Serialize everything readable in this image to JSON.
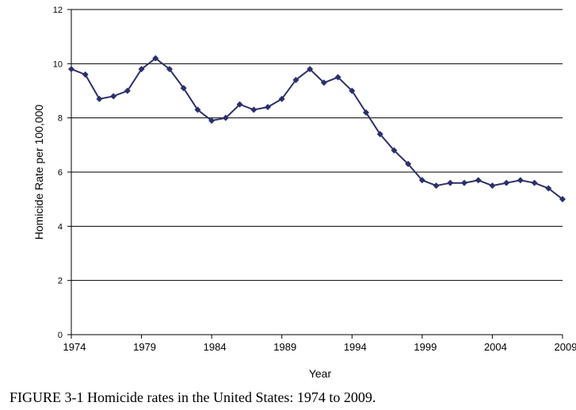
{
  "chart_data": {
    "type": "line",
    "title": "",
    "xlabel": "Year",
    "ylabel": "Homicide Rate per 100,000",
    "xlim": [
      1974,
      2009
    ],
    "ylim": [
      0,
      12
    ],
    "x_ticks": [
      "1974",
      "1979",
      "1984",
      "1989",
      "1994",
      "1999",
      "2004",
      "2009"
    ],
    "y_ticks": [
      "0",
      "2",
      "4",
      "6",
      "8",
      "10",
      "12"
    ],
    "grid": true,
    "legend": "none",
    "colors": {
      "line": "#2b2f6b",
      "grid": "#000000",
      "axis": "#000000"
    },
    "series": [
      {
        "name": "Homicide Rate",
        "x": [
          1974,
          1975,
          1976,
          1977,
          1978,
          1979,
          1980,
          1981,
          1982,
          1983,
          1984,
          1985,
          1986,
          1987,
          1988,
          1989,
          1990,
          1991,
          1992,
          1993,
          1994,
          1995,
          1996,
          1997,
          1998,
          1999,
          2000,
          2001,
          2002,
          2003,
          2004,
          2005,
          2006,
          2007,
          2008,
          2009
        ],
        "values": [
          9.8,
          9.6,
          8.7,
          8.8,
          9.0,
          9.8,
          10.2,
          9.8,
          9.1,
          8.3,
          7.9,
          8.0,
          8.5,
          8.3,
          8.4,
          8.7,
          9.4,
          9.8,
          9.3,
          9.5,
          9.0,
          8.2,
          7.4,
          6.8,
          6.3,
          5.7,
          5.5,
          5.6,
          5.6,
          5.7,
          5.5,
          5.6,
          5.7,
          5.6,
          5.4,
          5.0
        ]
      }
    ]
  },
  "caption": "FIGURE 3-1 Homicide rates in the United States: 1974 to 2009."
}
